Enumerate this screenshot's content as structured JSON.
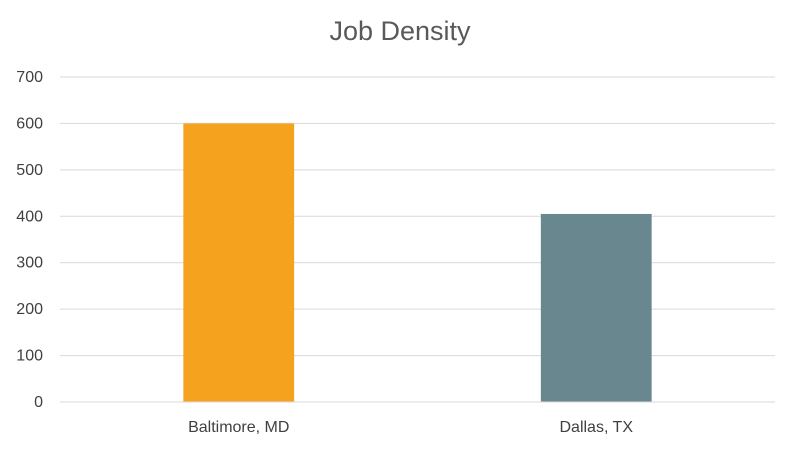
{
  "chart_data": {
    "type": "bar",
    "title": "Job Density",
    "xlabel": "",
    "ylabel": "",
    "categories": [
      "Baltimore, MD",
      "Dallas, TX"
    ],
    "values": [
      600,
      405
    ],
    "colors": [
      "#F5A31F",
      "#68878F"
    ],
    "ylim": [
      0,
      700
    ],
    "yticks": [
      0,
      100,
      200,
      300,
      400,
      500,
      600,
      700
    ],
    "grid": true,
    "legend": "none"
  }
}
